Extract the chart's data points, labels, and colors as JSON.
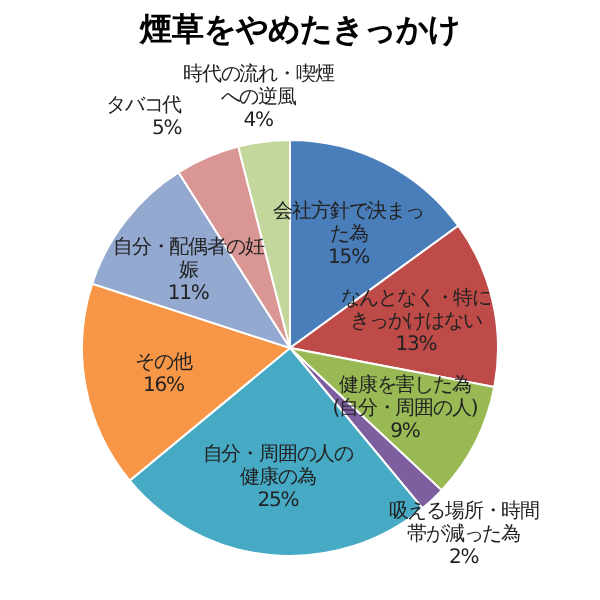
{
  "chart_data": {
    "type": "pie",
    "title": "煙草をやめたきっかけ",
    "categories": [
      "会社方針で決まった為",
      "なんとなく・特にきっかけはない",
      "健康を害した為(自分・周囲の人)",
      "吸える場所・時間帯が減った為",
      "自分・周囲の人の健康の為",
      "その他",
      "自分・配偶者の妊娠",
      "タバコ代",
      "時代の流れ・喫煙への逆風"
    ],
    "values": [
      15,
      13,
      9,
      2,
      25,
      16,
      11,
      5,
      4
    ],
    "value_labels": [
      "15%",
      "13%",
      "9%",
      "2%",
      "25%",
      "16%",
      "11%",
      "5%",
      "4%"
    ],
    "colors": [
      "#4a7ebb",
      "#be4b48",
      "#98b954",
      "#7d5fa0",
      "#46aac5",
      "#f79646",
      "#93a9d0",
      "#d99694",
      "#c3d69b"
    ]
  }
}
